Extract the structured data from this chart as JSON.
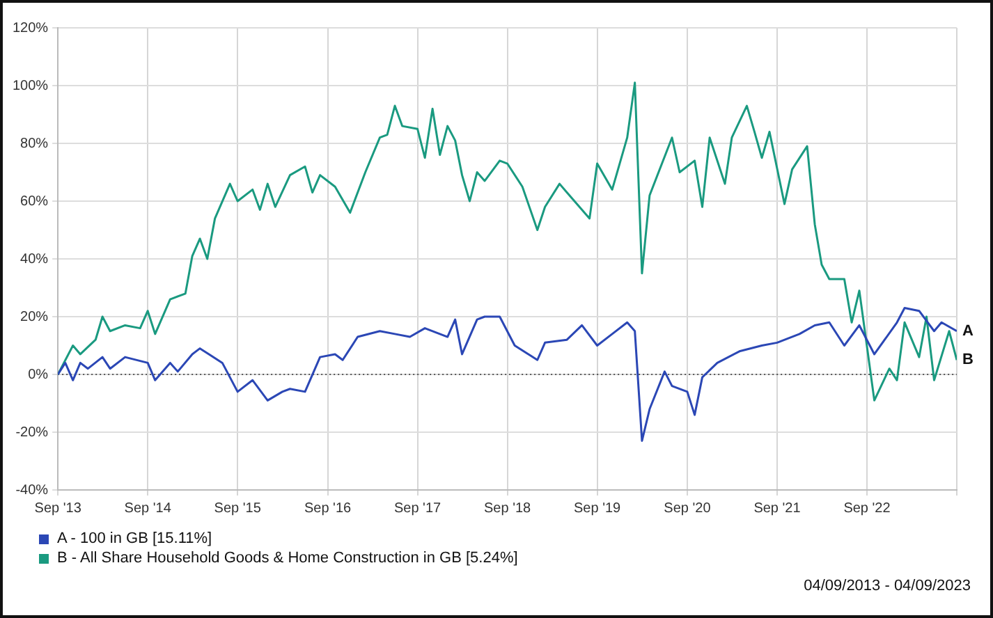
{
  "chart_data": {
    "type": "line",
    "xlim": [
      "2013-09",
      "2023-09"
    ],
    "xticks": [
      {
        "value": "2013-09",
        "label": "Sep '13"
      },
      {
        "value": "2014-09",
        "label": "Sep '14"
      },
      {
        "value": "2015-09",
        "label": "Sep '15"
      },
      {
        "value": "2016-09",
        "label": "Sep '16"
      },
      {
        "value": "2017-09",
        "label": "Sep '17"
      },
      {
        "value": "2018-09",
        "label": "Sep '18"
      },
      {
        "value": "2019-09",
        "label": "Sep '19"
      },
      {
        "value": "2020-09",
        "label": "Sep '20"
      },
      {
        "value": "2021-09",
        "label": "Sep '21"
      },
      {
        "value": "2022-09",
        "label": "Sep '22"
      },
      {
        "value": "2023-09",
        "label": null
      }
    ],
    "ylim": [
      -40,
      120
    ],
    "yticks": [
      {
        "value": -40,
        "label": "-40%"
      },
      {
        "value": -20,
        "label": "-20%"
      },
      {
        "value": 0,
        "label": "0%"
      },
      {
        "value": 20,
        "label": "20%"
      },
      {
        "value": 40,
        "label": "40%"
      },
      {
        "value": 60,
        "label": "60%"
      },
      {
        "value": 80,
        "label": "80%"
      },
      {
        "value": 100,
        "label": "100%"
      },
      {
        "value": 120,
        "label": "120%"
      }
    ],
    "grid": true,
    "legend": "bottom left",
    "marker": "none",
    "line_style": "solid",
    "ref_lines": [
      {
        "axis": "y",
        "value": 0,
        "color": "#555555",
        "line_style": "dotted"
      }
    ],
    "annotations": [
      {
        "text": "A",
        "x": "2023-09",
        "y": 15
      },
      {
        "text": "B",
        "x": "2023-09",
        "y": 5
      },
      "04/09/2013 - 04/09/2023"
    ],
    "series": [
      {
        "name": "A - 100 in GB [15.11%]",
        "color": "#2b47b5",
        "x": [
          "2013-09",
          "2013-10",
          "2013-11",
          "2013-12",
          "2014-01",
          "2014-03",
          "2014-04",
          "2014-06",
          "2014-09",
          "2014-10",
          "2014-12",
          "2015-01",
          "2015-03",
          "2015-04",
          "2015-07",
          "2015-09",
          "2015-11",
          "2016-01",
          "2016-03",
          "2016-04",
          "2016-06",
          "2016-08",
          "2016-10",
          "2016-11",
          "2017-01",
          "2017-04",
          "2017-06",
          "2017-08",
          "2017-10",
          "2018-01",
          "2018-02",
          "2018-03",
          "2018-05",
          "2018-06",
          "2018-08",
          "2018-10",
          "2019-01",
          "2019-02",
          "2019-05",
          "2019-07",
          "2019-09",
          "2019-11",
          "2020-01",
          "2020-02",
          "2020-03",
          "2020-04",
          "2020-06",
          "2020-07",
          "2020-09",
          "2020-10",
          "2020-11",
          "2021-01",
          "2021-04",
          "2021-07",
          "2021-09",
          "2021-12",
          "2022-02",
          "2022-04",
          "2022-06",
          "2022-08",
          "2022-10",
          "2023-01",
          "2023-02",
          "2023-04",
          "2023-06",
          "2023-07",
          "2023-09"
        ],
        "values": [
          0,
          4,
          -2,
          4,
          2,
          6,
          2,
          6,
          4,
          -2,
          4,
          1,
          7,
          9,
          4,
          -6,
          -2,
          -9,
          -6,
          -5,
          -6,
          6,
          7,
          5,
          13,
          15,
          14,
          13,
          16,
          13,
          19,
          7,
          19,
          20,
          20,
          10,
          5,
          11,
          12,
          17,
          10,
          14,
          18,
          15,
          -23,
          -12,
          1,
          -4,
          -6,
          -14,
          -1,
          4,
          8,
          10,
          11,
          14,
          17,
          18,
          10,
          17,
          7,
          18,
          23,
          22,
          15,
          18,
          15
        ]
      },
      {
        "name": "B - All Share Household Goods & Home Construction in GB [5.24%]",
        "color": "#1a9a80",
        "x": [
          "2013-09",
          "2013-11",
          "2013-12",
          "2014-02",
          "2014-03",
          "2014-04",
          "2014-06",
          "2014-08",
          "2014-09",
          "2014-10",
          "2014-12",
          "2015-02",
          "2015-03",
          "2015-04",
          "2015-05",
          "2015-06",
          "2015-08",
          "2015-09",
          "2015-11",
          "2015-12",
          "2016-01",
          "2016-02",
          "2016-04",
          "2016-06",
          "2016-07",
          "2016-08",
          "2016-10",
          "2016-12",
          "2017-02",
          "2017-04",
          "2017-05",
          "2017-06",
          "2017-07",
          "2017-09",
          "2017-10",
          "2017-11",
          "2017-12",
          "2018-01",
          "2018-02",
          "2018-03",
          "2018-04",
          "2018-05",
          "2018-06",
          "2018-08",
          "2018-09",
          "2018-11",
          "2019-01",
          "2019-02",
          "2019-04",
          "2019-05",
          "2019-08",
          "2019-09",
          "2019-11",
          "2020-01",
          "2020-02",
          "2020-03",
          "2020-04",
          "2020-07",
          "2020-08",
          "2020-10",
          "2020-11",
          "2020-12",
          "2021-02",
          "2021-03",
          "2021-05",
          "2021-06",
          "2021-07",
          "2021-08",
          "2021-10",
          "2021-11",
          "2022-01",
          "2022-02",
          "2022-03",
          "2022-04",
          "2022-06",
          "2022-07",
          "2022-08",
          "2022-10",
          "2022-12",
          "2023-01",
          "2023-02",
          "2023-04",
          "2023-05",
          "2023-06",
          "2023-08",
          "2023-09"
        ],
        "values": [
          0,
          10,
          7,
          12,
          20,
          15,
          17,
          16,
          22,
          14,
          26,
          28,
          41,
          47,
          40,
          54,
          66,
          60,
          64,
          57,
          66,
          58,
          69,
          72,
          63,
          69,
          65,
          56,
          70,
          82,
          83,
          93,
          86,
          85,
          75,
          92,
          76,
          86,
          81,
          69,
          60,
          70,
          67,
          74,
          73,
          65,
          50,
          58,
          66,
          63,
          54,
          73,
          64,
          82,
          101,
          35,
          62,
          82,
          70,
          74,
          58,
          82,
          66,
          82,
          93,
          84,
          75,
          84,
          59,
          71,
          79,
          52,
          38,
          33,
          33,
          18,
          29,
          -9,
          2,
          -2,
          18,
          6,
          20,
          -2,
          15,
          5
        ]
      }
    ]
  }
}
